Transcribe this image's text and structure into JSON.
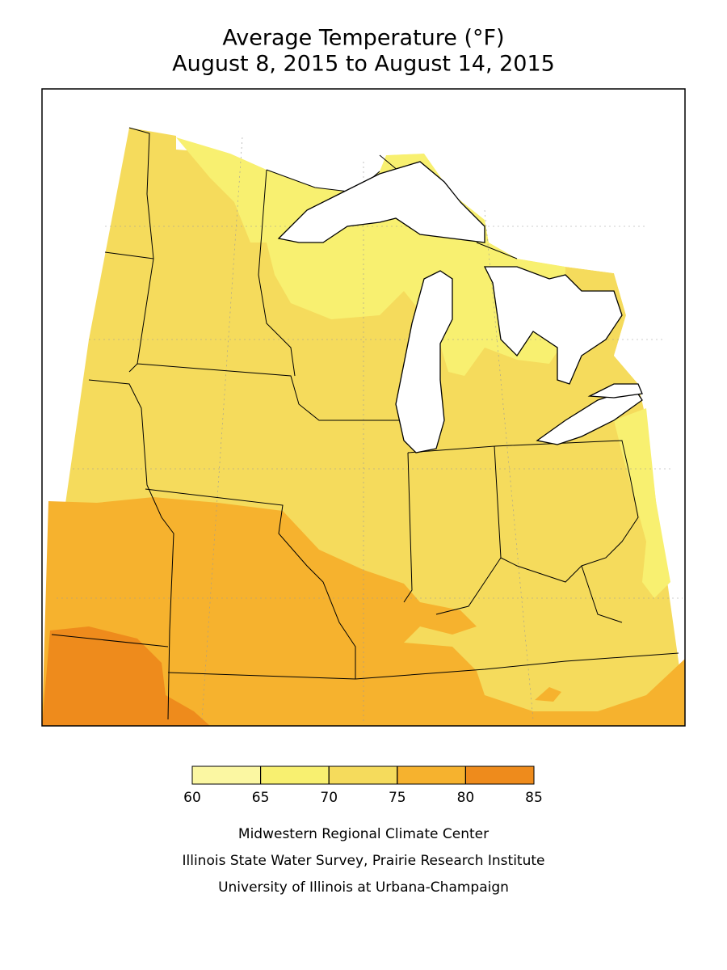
{
  "title": [
    "Average Temperature (°F)",
    "August 8, 2015 to August 14, 2015"
  ],
  "legend": {
    "bins": [
      60,
      65,
      70,
      75,
      80,
      85
    ],
    "colors": [
      "#fbf7a2",
      "#f8f070",
      "#f5db5c",
      "#f6b22e",
      "#ee8b1c"
    ]
  },
  "credits": [
    "Midwestern Regional Climate Center",
    "Illinois State Water Survey, Prairie Research Institute",
    "University of Illinois at Urbana-Champaign"
  ]
}
